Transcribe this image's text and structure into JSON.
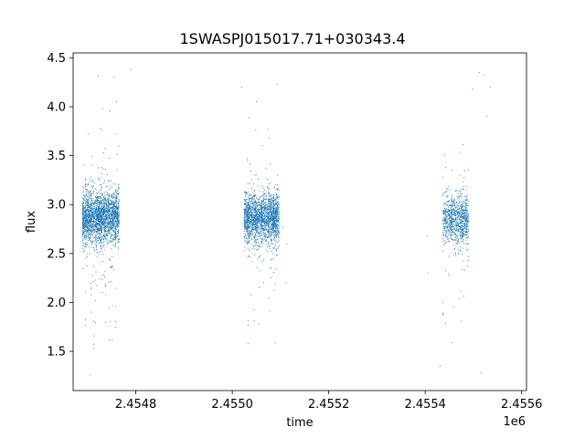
{
  "chart_data": {
    "type": "scatter",
    "title": "1SWASPJ015017.71+030343.4",
    "xlabel": "time",
    "ylabel": "flux",
    "x_offset_label": "1e6",
    "xlim": [
      2454670,
      2455610
    ],
    "ylim": [
      1.1,
      4.55
    ],
    "x_ticks": [
      2454800,
      2455000,
      2455200,
      2455400,
      2455600
    ],
    "x_tick_labels": [
      "2.4548",
      "2.4550",
      "2.4552",
      "2.4554",
      "2.4556"
    ],
    "y_ticks": [
      1.5,
      2.0,
      2.5,
      3.0,
      3.5,
      4.0,
      4.5
    ],
    "y_tick_labels": [
      "1.5",
      "2.0",
      "2.5",
      "3.0",
      "3.5",
      "4.0",
      "4.5"
    ],
    "marker_color": "#1f77b4",
    "grid": false,
    "legend": "none",
    "segments": [
      {
        "x_start": 2454690,
        "x_end": 2454765,
        "y_center": 2.87,
        "y_spread": 0.13,
        "density": 2300,
        "dip_fraction": 0.12
      },
      {
        "x_start": 2455025,
        "x_end": 2455098,
        "y_center": 2.87,
        "y_spread": 0.12,
        "density": 1900,
        "dip_fraction": 0.11
      },
      {
        "x_start": 2455437,
        "x_end": 2455490,
        "y_center": 2.85,
        "y_spread": 0.13,
        "density": 900,
        "dip_fraction": 0.1
      }
    ],
    "outliers": [
      {
        "x": 2454790,
        "y": 4.38
      },
      {
        "x": 2454755,
        "y": 4.3
      },
      {
        "x": 2454722,
        "y": 4.31
      },
      {
        "x": 2454760,
        "y": 4.05
      },
      {
        "x": 2454731,
        "y": 3.98
      },
      {
        "x": 2455093,
        "y": 4.23
      },
      {
        "x": 2455050,
        "y": 4.05
      },
      {
        "x": 2455019,
        "y": 4.2
      },
      {
        "x": 2455105,
        "y": 2.77
      },
      {
        "x": 2455113,
        "y": 2.6
      },
      {
        "x": 2455112,
        "y": 2.2
      },
      {
        "x": 2455405,
        "y": 2.68
      },
      {
        "x": 2455406,
        "y": 2.3
      },
      {
        "x": 2455498,
        "y": 4.18
      },
      {
        "x": 2455512,
        "y": 4.35
      },
      {
        "x": 2455521,
        "y": 4.32
      },
      {
        "x": 2455528,
        "y": 3.9
      },
      {
        "x": 2455535,
        "y": 4.2
      },
      {
        "x": 2455431,
        "y": 1.35
      },
      {
        "x": 2455516,
        "y": 1.28
      },
      {
        "x": 2454705,
        "y": 1.26
      }
    ]
  }
}
